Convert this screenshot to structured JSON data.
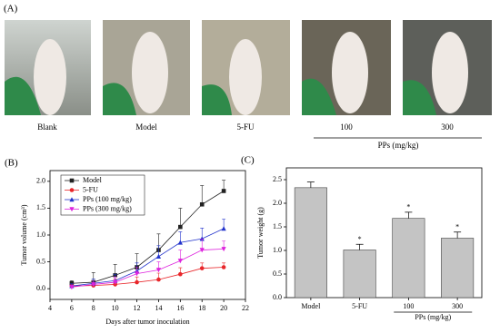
{
  "panel_a": {
    "label": "(A)",
    "photos": [
      "Blank",
      "Model",
      "5-FU",
      "100",
      "300"
    ],
    "group_label": "PPs (mg/kg)"
  },
  "chart_data": [
    {
      "type": "line",
      "panel": "(B)",
      "xlabel": "Days after tumor inoculation",
      "ylabel": "Tumor volume (cm³)",
      "x": [
        6,
        8,
        10,
        12,
        14,
        16,
        18,
        20
      ],
      "xlim": [
        4,
        22
      ],
      "xticks": [
        4,
        6,
        8,
        10,
        12,
        14,
        16,
        18,
        20,
        22
      ],
      "ylim": [
        -0.2,
        2.2
      ],
      "yticks": [
        {
          "value": 0,
          "label": "0.0"
        },
        {
          "value": 0.5,
          "label": "0.5"
        },
        {
          "value": 1,
          "label": "1.0"
        },
        {
          "value": 1.5,
          "label": "1.5"
        },
        {
          "value": 2,
          "label": "2.0"
        }
      ],
      "legend": "upper-left",
      "series": [
        {
          "name": "Model",
          "color": "#222222",
          "marker": "square",
          "values": [
            0.1,
            0.12,
            0.25,
            0.4,
            0.72,
            1.15,
            1.57,
            1.82
          ],
          "errors": [
            0.05,
            0.18,
            0.2,
            0.25,
            0.3,
            0.35,
            0.35,
            0.2
          ]
        },
        {
          "name": "5-FU",
          "color": "#e8262a",
          "marker": "circle",
          "values": [
            0.05,
            0.06,
            0.08,
            0.12,
            0.17,
            0.27,
            0.38,
            0.4
          ],
          "errors": [
            0.04,
            0.05,
            0.1,
            0.1,
            0.12,
            0.12,
            0.1,
            0.08
          ]
        },
        {
          "name": "PPs (100 mg/kg)",
          "color": "#2233cc",
          "marker": "triangle-up",
          "values": [
            0.05,
            0.1,
            0.15,
            0.33,
            0.6,
            0.86,
            0.93,
            1.12
          ],
          "errors": [
            0.04,
            0.08,
            0.12,
            0.15,
            0.2,
            0.2,
            0.2,
            0.18
          ]
        },
        {
          "name": "PPs (300 mg/kg)",
          "color": "#dd22dd",
          "marker": "triangle-down",
          "values": [
            0.03,
            0.08,
            0.12,
            0.28,
            0.35,
            0.52,
            0.72,
            0.74
          ],
          "errors": [
            0.03,
            0.06,
            0.1,
            0.12,
            0.15,
            0.2,
            0.2,
            0.15
          ]
        }
      ]
    },
    {
      "type": "bar",
      "panel": "(C)",
      "ylabel": "Tumor weight (g)",
      "categories": [
        "Model",
        "5-FU",
        "100",
        "300"
      ],
      "group_label": "PPs (mg/kg)",
      "values": [
        2.33,
        1.01,
        1.68,
        1.26
      ],
      "errors": [
        0.12,
        0.12,
        0.13,
        0.13
      ],
      "significance": [
        null,
        "*",
        "*",
        "*"
      ],
      "color": "#c4c4c4",
      "ylim": [
        0,
        2.75
      ],
      "yticks": [
        {
          "value": 0,
          "label": "0.0"
        },
        {
          "value": 0.5,
          "label": "0.5"
        },
        {
          "value": 1,
          "label": "1.0"
        },
        {
          "value": 1.5,
          "label": "1.5"
        },
        {
          "value": 2,
          "label": "2.0"
        },
        {
          "value": 2.5,
          "label": "2.5"
        }
      ]
    }
  ]
}
